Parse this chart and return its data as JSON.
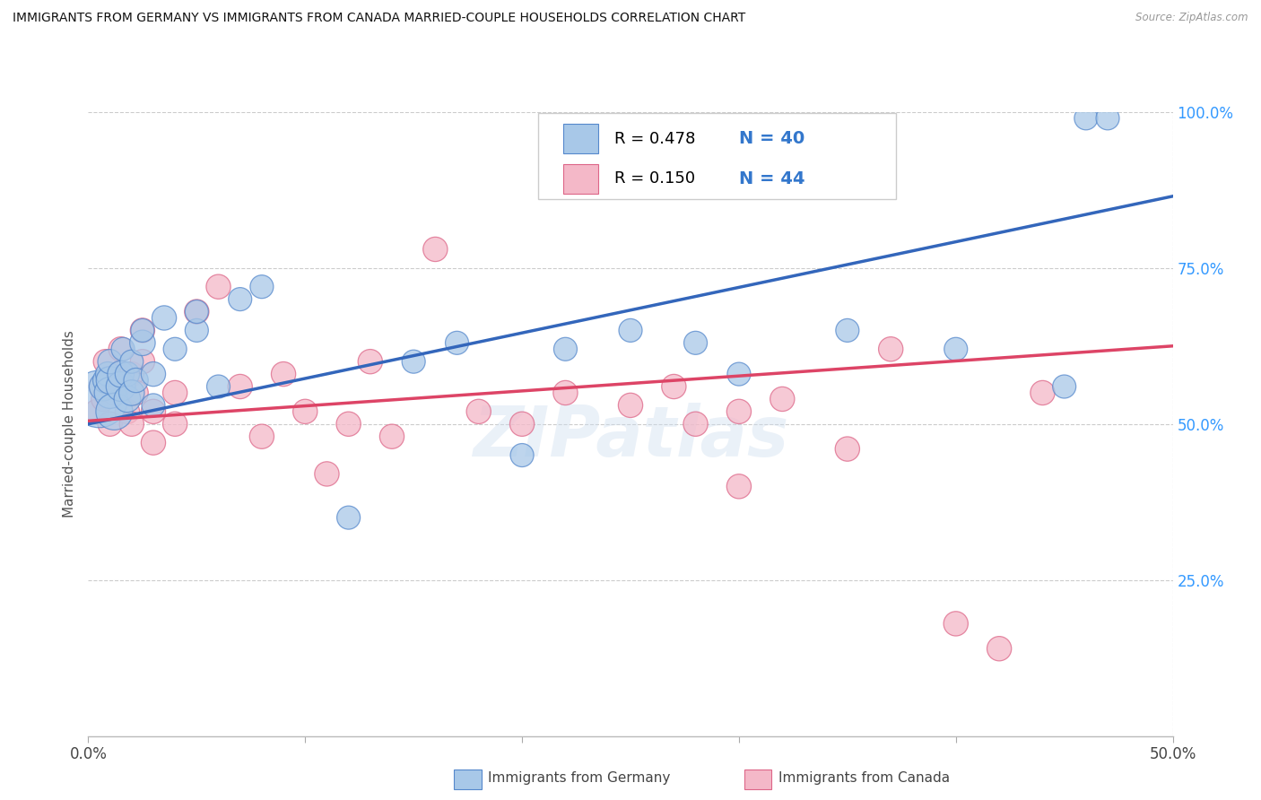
{
  "title": "IMMIGRANTS FROM GERMANY VS IMMIGRANTS FROM CANADA MARRIED-COUPLE HOUSEHOLDS CORRELATION CHART",
  "source": "Source: ZipAtlas.com",
  "ylabel": "Married-couple Households",
  "xlim": [
    0.0,
    0.5
  ],
  "ylim": [
    0.0,
    1.0
  ],
  "xtick_positions": [
    0.0,
    0.1,
    0.2,
    0.3,
    0.4,
    0.5
  ],
  "xticklabels": [
    "0.0%",
    "",
    "",
    "",
    "",
    "50.0%"
  ],
  "ytick_right_positions": [
    0.25,
    0.5,
    0.75,
    1.0
  ],
  "ytick_right_labels": [
    "25.0%",
    "50.0%",
    "75.0%",
    "100.0%"
  ],
  "blue_R": 0.478,
  "blue_N": 40,
  "pink_R": 0.15,
  "pink_N": 44,
  "blue_fill": "#a8c8e8",
  "pink_fill": "#f4b8c8",
  "blue_edge": "#5588cc",
  "pink_edge": "#dd6688",
  "blue_line": "#3366bb",
  "pink_line": "#dd4466",
  "legend_label_blue": "Immigrants from Germany",
  "legend_label_pink": "Immigrants from Canada",
  "watermark": "ZIPatlas",
  "blue_trend_x0": 0.0,
  "blue_trend_y0": 0.5,
  "blue_trend_x1": 0.5,
  "blue_trend_y1": 0.865,
  "pink_trend_x0": 0.0,
  "pink_trend_y0": 0.505,
  "pink_trend_x1": 0.5,
  "pink_trend_y1": 0.625,
  "blue_x": [
    0.005,
    0.007,
    0.008,
    0.009,
    0.01,
    0.01,
    0.01,
    0.012,
    0.015,
    0.015,
    0.016,
    0.018,
    0.018,
    0.02,
    0.02,
    0.022,
    0.025,
    0.025,
    0.03,
    0.03,
    0.035,
    0.04,
    0.05,
    0.05,
    0.06,
    0.07,
    0.08,
    0.12,
    0.15,
    0.17,
    0.2,
    0.22,
    0.25,
    0.28,
    0.3,
    0.35,
    0.4,
    0.45,
    0.46,
    0.47
  ],
  "blue_y": [
    0.54,
    0.56,
    0.57,
    0.58,
    0.55,
    0.57,
    0.6,
    0.52,
    0.56,
    0.58,
    0.62,
    0.54,
    0.58,
    0.55,
    0.6,
    0.57,
    0.63,
    0.65,
    0.58,
    0.53,
    0.67,
    0.62,
    0.65,
    0.68,
    0.56,
    0.7,
    0.72,
    0.35,
    0.6,
    0.63,
    0.45,
    0.62,
    0.65,
    0.63,
    0.58,
    0.65,
    0.62,
    0.56,
    0.99,
    0.99
  ],
  "blue_sizes": [
    600,
    150,
    120,
    110,
    180,
    140,
    110,
    250,
    160,
    130,
    100,
    130,
    110,
    120,
    100,
    110,
    120,
    100,
    110,
    100,
    110,
    100,
    100,
    100,
    100,
    100,
    100,
    100,
    100,
    100,
    100,
    100,
    100,
    100,
    100,
    100,
    100,
    100,
    100,
    100
  ],
  "pink_x": [
    0.004,
    0.006,
    0.007,
    0.008,
    0.01,
    0.012,
    0.014,
    0.015,
    0.016,
    0.018,
    0.02,
    0.02,
    0.022,
    0.025,
    0.025,
    0.03,
    0.03,
    0.04,
    0.04,
    0.05,
    0.06,
    0.07,
    0.08,
    0.09,
    0.1,
    0.11,
    0.12,
    0.13,
    0.14,
    0.16,
    0.18,
    0.2,
    0.22,
    0.25,
    0.27,
    0.28,
    0.3,
    0.3,
    0.32,
    0.35,
    0.37,
    0.4,
    0.42,
    0.44
  ],
  "pink_y": [
    0.52,
    0.56,
    0.54,
    0.6,
    0.5,
    0.55,
    0.58,
    0.62,
    0.56,
    0.52,
    0.58,
    0.5,
    0.55,
    0.6,
    0.65,
    0.52,
    0.47,
    0.55,
    0.5,
    0.68,
    0.72,
    0.56,
    0.48,
    0.58,
    0.52,
    0.42,
    0.5,
    0.6,
    0.48,
    0.78,
    0.52,
    0.5,
    0.55,
    0.53,
    0.56,
    0.5,
    0.52,
    0.4,
    0.54,
    0.46,
    0.62,
    0.18,
    0.14,
    0.55
  ],
  "pink_sizes": [
    110,
    110,
    110,
    110,
    110,
    110,
    110,
    110,
    110,
    110,
    110,
    110,
    110,
    110,
    110,
    110,
    110,
    110,
    110,
    110,
    110,
    110,
    110,
    110,
    110,
    110,
    110,
    110,
    110,
    110,
    110,
    110,
    110,
    110,
    110,
    110,
    110,
    110,
    110,
    110,
    110,
    110,
    110,
    110
  ]
}
